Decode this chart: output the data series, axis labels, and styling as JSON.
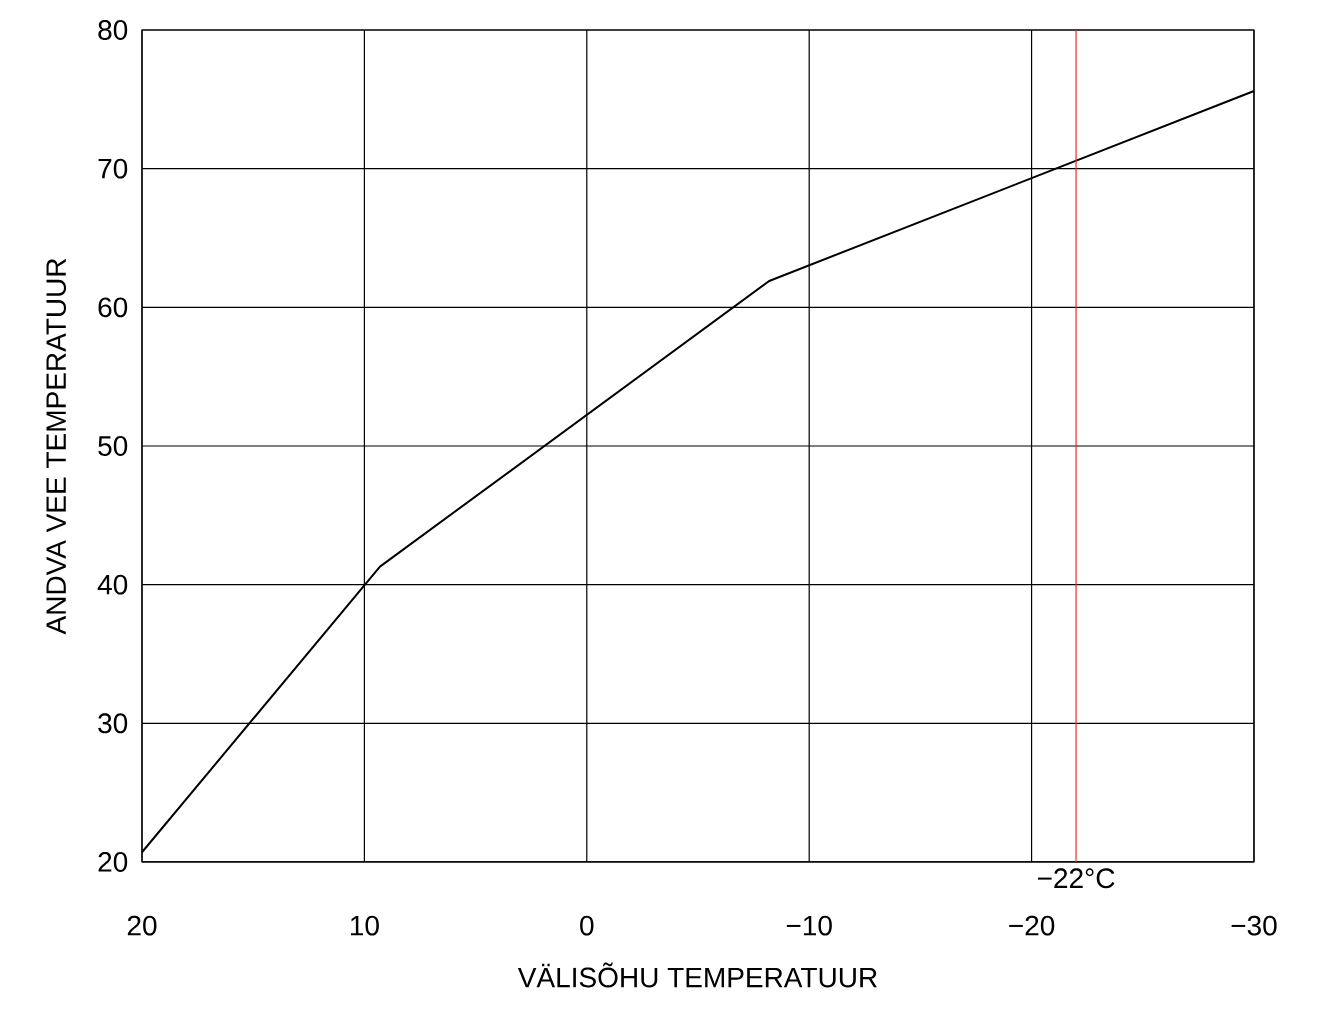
{
  "chart_data": {
    "type": "line",
    "xlabel": "VÄLISÕHU TEMPERATUUR",
    "ylabel": "ANDVA VEE TEMPERATUUR",
    "x": [
      20,
      9.3,
      -8.2,
      -30
    ],
    "series": [
      {
        "color": "#000000",
        "values": [
          20.7,
          41.3,
          61.9,
          75.6
        ]
      }
    ],
    "xlim": [
      20,
      -30
    ],
    "ylim": [
      20,
      80
    ],
    "xticks": [
      20,
      10,
      0,
      {
        "value": -10,
        "label": "−10"
      },
      {
        "value": -20,
        "label": "−20"
      },
      {
        "value": -30,
        "label": "−30"
      }
    ],
    "yticks": [
      20,
      30,
      40,
      50,
      60,
      70,
      80
    ],
    "grid": true,
    "ref_lines": [
      {
        "axis": "x",
        "value": -22,
        "label": "−22°C",
        "color": "#e03030"
      }
    ]
  }
}
